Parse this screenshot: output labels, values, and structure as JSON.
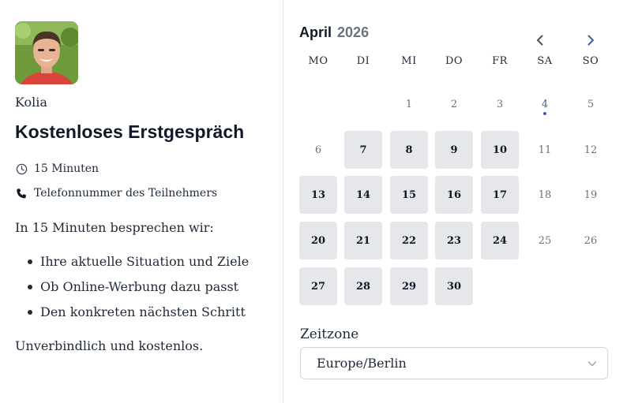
{
  "host": {
    "name": "Kolia",
    "avatar_alt": "Kolia"
  },
  "event": {
    "title": "Kostenloses Erstgespräch",
    "duration": "15 Minuten",
    "location": "Telefonnummer des Teilnehmers",
    "intro": "In 15 Minuten besprechen wir:",
    "bullets": [
      "Ihre aktuelle Situation und Ziele",
      "Ob Online-Werbung dazu passt",
      "Den konkreten nächsten Schritt"
    ],
    "outro": "Unverbindlich und kostenlos."
  },
  "calendar": {
    "month": "April",
    "year": "2026",
    "weekdays": [
      "MO",
      "DI",
      "MI",
      "DO",
      "FR",
      "SA",
      "SO"
    ],
    "today": 4,
    "days": [
      {
        "d": "1",
        "available": false
      },
      {
        "d": "2",
        "available": false
      },
      {
        "d": "3",
        "available": false
      },
      {
        "d": "4",
        "available": false
      },
      {
        "d": "5",
        "available": false
      },
      {
        "d": "6",
        "available": false
      },
      {
        "d": "7",
        "available": true
      },
      {
        "d": "8",
        "available": true
      },
      {
        "d": "9",
        "available": true
      },
      {
        "d": "10",
        "available": true
      },
      {
        "d": "11",
        "available": false
      },
      {
        "d": "12",
        "available": false
      },
      {
        "d": "13",
        "available": true
      },
      {
        "d": "14",
        "available": true
      },
      {
        "d": "15",
        "available": true
      },
      {
        "d": "16",
        "available": true
      },
      {
        "d": "17",
        "available": true
      },
      {
        "d": "18",
        "available": false
      },
      {
        "d": "19",
        "available": false
      },
      {
        "d": "20",
        "available": true
      },
      {
        "d": "21",
        "available": true
      },
      {
        "d": "22",
        "available": true
      },
      {
        "d": "23",
        "available": true
      },
      {
        "d": "24",
        "available": true
      },
      {
        "d": "25",
        "available": false
      },
      {
        "d": "26",
        "available": false
      },
      {
        "d": "27",
        "available": true
      },
      {
        "d": "28",
        "available": true
      },
      {
        "d": "29",
        "available": true
      },
      {
        "d": "30",
        "available": true
      }
    ]
  },
  "timezone": {
    "label": "Zeitzone",
    "value": "Europe/Berlin"
  },
  "colors": {
    "accent": "#3b5ea8",
    "available_bg": "#e5e7eb",
    "divider": "#e5e7eb"
  }
}
